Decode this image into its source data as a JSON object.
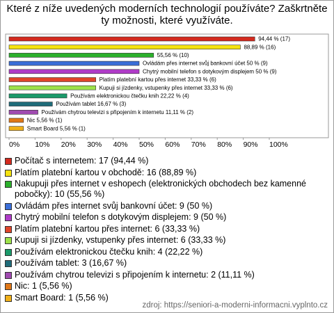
{
  "chart_data": {
    "type": "bar",
    "orientation": "horizontal",
    "title": "Které z níže uvedených moderních technologií používáte? Zaškrtněte ty možnosti, které využíváte.",
    "categories": [
      "Počítač s internetem: 17 (94,44 %)",
      "Platím platební kartou v obchodě: 16 (88,89 %)",
      "Nakupuji přes internet v eshopech (elektronických obchodech bez kamenné pobočky): 10 (55,56 %)",
      "Ovládám přes internet svůj bankovní účet: 9 (50 %)",
      "Chytrý mobilní telefon s dotykovým displejem: 9 (50 %)",
      "Platím platební kartou přes internet: 6 (33,33 %)",
      "Kupuji si jízdenky, vstupenky přes internet: 6 (33,33 %)",
      "Používám elektronickou čtečku knih: 4 (22,22 %)",
      "Používám tablet: 3 (16,67 %)",
      "Používám chytrou televizi s připojením k internetu: 2 (11,11 %)",
      "Nic: 1 (5,56 %)",
      "Smart Board: 1 (5,56 %)"
    ],
    "values": [
      94.44,
      88.89,
      55.56,
      50,
      50,
      33.33,
      33.33,
      22.22,
      16.67,
      11.11,
      5.56,
      5.56
    ],
    "value_labels": [
      "94,44 % (17)",
      "88,89 % (16)",
      "55,56 % (10)",
      "Ovládám přes internet svůj bankovní účet 50 % (9)",
      "Chytrý mobilní telefon s dotykovým displejem 50 % (9)",
      "Platím platební kartou přes internet 33,33 % (6)",
      "Kupuji si jízdenky, vstupenky přes internet 33,33 % (6)",
      "Používám elektronickou čtečku knih 22,22 % (4)",
      "Používám tablet 16,67 % (3)",
      "Používám chytrou televizi s připojením k internetu 11,11 % (2)",
      "Nic 5,56 % (1)",
      "Smart Board 5,56 % (1)"
    ],
    "colors": [
      "#d42a1e",
      "#f4e20e",
      "#2bb02b",
      "#3a6ed8",
      "#b03cc8",
      "#e0452a",
      "#9de24a",
      "#1a9a6a",
      "#1f6c7a",
      "#a04ab0",
      "#e07818",
      "#f0b01a"
    ],
    "xlim": [
      0,
      100
    ],
    "xticks": [
      {
        "value": 0,
        "label": "0%"
      },
      {
        "value": 10,
        "label": "10%"
      },
      {
        "value": 20,
        "label": "20%"
      },
      {
        "value": 30,
        "label": "30%"
      },
      {
        "value": 40,
        "label": "40%"
      },
      {
        "value": 50,
        "label": "50%"
      },
      {
        "value": 60,
        "label": "60%"
      },
      {
        "value": 70,
        "label": "70%"
      },
      {
        "value": 80,
        "label": "80%"
      },
      {
        "value": 90,
        "label": "90%"
      },
      {
        "value": 100,
        "label": "100%"
      }
    ],
    "source": "zdroj: https://seniori-a-moderni-informacni.vyplnto.cz"
  }
}
